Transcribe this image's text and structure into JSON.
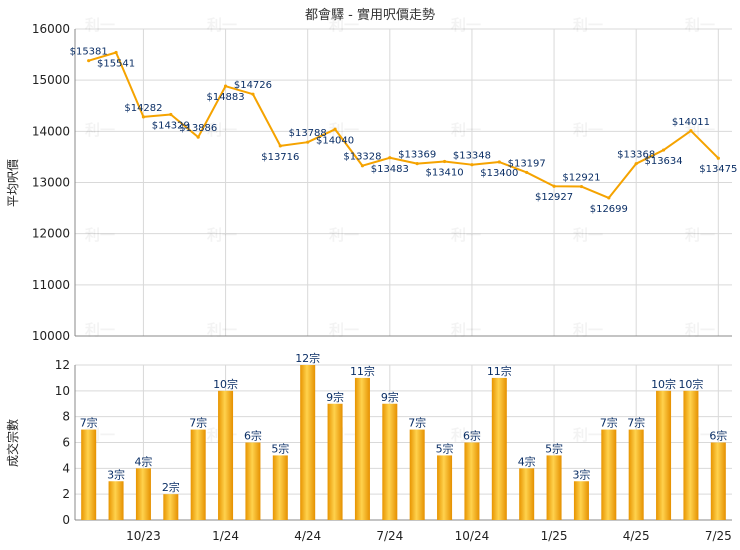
{
  "chart_data": [
    {
      "type": "line",
      "title": "都會驛 - 實用呎價走勢",
      "ylabel": "平均呎價",
      "ylim": [
        10000,
        16000
      ],
      "yticks": [
        10000,
        11000,
        12000,
        13000,
        14000,
        15000,
        16000
      ],
      "series": [
        {
          "values": [
            15381,
            15541,
            14282,
            14329,
            13886,
            14883,
            14726,
            13716,
            13788,
            14040,
            13328,
            13483,
            13369,
            13410,
            13348,
            13400,
            13197,
            12927,
            12921,
            12699,
            13368,
            13634,
            14011,
            13475
          ]
        }
      ],
      "data_labels": [
        "$15381",
        "$15541",
        "$14282",
        "$14329",
        "$13886",
        "$14883",
        "$14726",
        "$13716",
        "$13788",
        "$14040",
        "$13328",
        "$13483",
        "$13369",
        "$13410",
        "$13348",
        "$13400",
        "$13197",
        "$12927",
        "$12921",
        "$12699",
        "$13368",
        "$13634",
        "$14011",
        "$13475"
      ],
      "color": "#f5a300",
      "grid": true
    },
    {
      "type": "bar",
      "ylabel": "成交宗數",
      "ylim": [
        0,
        12
      ],
      "yticks": [
        0,
        2,
        4,
        6,
        8,
        10,
        12
      ],
      "series": [
        {
          "values": [
            7,
            3,
            4,
            2,
            7,
            10,
            6,
            5,
            12,
            9,
            11,
            9,
            7,
            5,
            6,
            11,
            4,
            5,
            3,
            7,
            7,
            10,
            10,
            6
          ]
        }
      ],
      "data_labels": [
        "7宗",
        "3宗",
        "4宗",
        "2宗",
        "7宗",
        "10宗",
        "6宗",
        "5宗",
        "12宗",
        "9宗",
        "11宗",
        "9宗",
        "7宗",
        "5宗",
        "6宗",
        "11宗",
        "4宗",
        "5宗",
        "3宗",
        "7宗",
        "7宗",
        "10宗",
        "10宗",
        "6宗"
      ],
      "x_tick_labels": [
        "10/23",
        "1/24",
        "4/24",
        "7/24",
        "10/24",
        "1/25",
        "4/25",
        "7/25"
      ],
      "color": "#f5a300",
      "grid": true
    }
  ],
  "watermark": "利一"
}
